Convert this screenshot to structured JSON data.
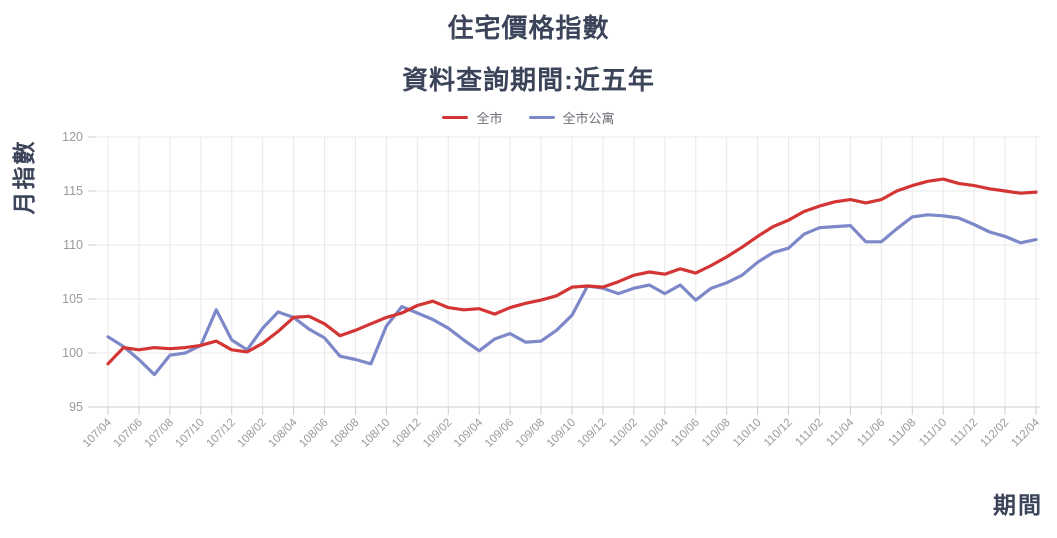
{
  "page": {
    "title": "住宅價格指數",
    "subtitle": "資料查詢期間:近五年"
  },
  "colors": {
    "title_text": "#3c445a",
    "tick_text": "#9a9a9a",
    "gridline": "#e8e8e8",
    "axis_line": "#cccccc",
    "series_city": "#d33534",
    "series_city_apartment": "#7d88c9"
  },
  "chart_data": {
    "type": "line",
    "title": "住宅價格指數",
    "subtitle": "資料查詢期間:近五年",
    "xlabel": "期間",
    "ylabel": "月指數",
    "ylim": [
      95,
      120
    ],
    "y_ticks": [
      95,
      100,
      105,
      110,
      115,
      120
    ],
    "x_tick_step": 2,
    "grid": true,
    "legend_position": "top",
    "x": [
      "107/04",
      "107/05",
      "107/06",
      "107/07",
      "107/08",
      "107/09",
      "107/10",
      "107/11",
      "107/12",
      "108/01",
      "108/02",
      "108/03",
      "108/04",
      "108/05",
      "108/06",
      "108/07",
      "108/08",
      "108/09",
      "108/10",
      "108/11",
      "108/12",
      "109/01",
      "109/02",
      "109/03",
      "109/04",
      "109/05",
      "109/06",
      "109/07",
      "109/08",
      "109/09",
      "109/10",
      "109/11",
      "109/12",
      "110/01",
      "110/02",
      "110/03",
      "110/04",
      "110/05",
      "110/06",
      "110/07",
      "110/08",
      "110/09",
      "110/10",
      "110/11",
      "110/12",
      "111/01",
      "111/02",
      "111/03",
      "111/04",
      "111/05",
      "111/06",
      "111/07",
      "111/08",
      "111/09",
      "111/10",
      "111/11",
      "111/12",
      "112/01",
      "112/02",
      "112/03",
      "112/04"
    ],
    "series": [
      {
        "name": "全市",
        "color": "#d33534",
        "values": [
          99.0,
          100.5,
          100.3,
          100.5,
          100.4,
          100.5,
          100.7,
          101.1,
          100.3,
          100.1,
          100.9,
          102.0,
          103.3,
          103.4,
          102.7,
          101.6,
          102.1,
          102.7,
          103.3,
          103.7,
          104.4,
          104.8,
          104.2,
          104.0,
          104.1,
          103.6,
          104.2,
          104.6,
          104.9,
          105.3,
          106.1,
          106.2,
          106.1,
          106.6,
          107.2,
          107.5,
          107.3,
          107.8,
          107.4,
          108.1,
          108.9,
          109.8,
          110.8,
          111.7,
          112.3,
          113.1,
          113.6,
          114.0,
          114.2,
          113.9,
          114.2,
          115.0,
          115.5,
          115.9,
          116.1,
          115.7,
          115.5,
          115.2,
          115.0,
          114.8,
          114.9
        ]
      },
      {
        "name": "全市公寓",
        "color": "#7d88c9",
        "values": [
          101.5,
          100.6,
          99.4,
          98.0,
          99.8,
          100.0,
          100.7,
          104.0,
          101.2,
          100.3,
          102.3,
          103.8,
          103.3,
          102.2,
          101.4,
          99.7,
          99.4,
          99.0,
          102.5,
          104.3,
          103.7,
          103.1,
          102.3,
          101.2,
          100.2,
          101.3,
          101.8,
          101.0,
          101.1,
          102.1,
          103.5,
          106.2,
          106.0,
          105.5,
          106.0,
          106.3,
          105.5,
          106.3,
          104.9,
          106.0,
          106.5,
          107.2,
          108.4,
          109.3,
          109.7,
          111.0,
          111.6,
          111.7,
          111.8,
          110.3,
          110.3,
          111.5,
          112.6,
          112.8,
          112.7,
          112.5,
          111.9,
          111.2,
          110.8,
          110.2,
          110.5
        ]
      }
    ]
  }
}
